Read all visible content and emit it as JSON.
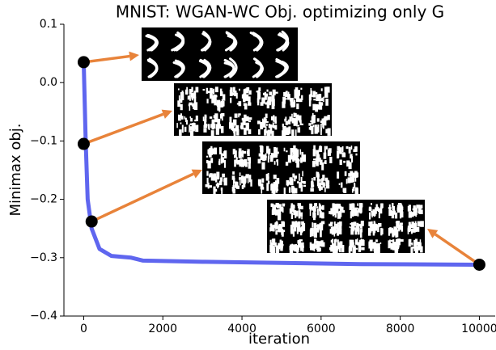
{
  "chart_data": {
    "type": "line",
    "title": "MNIST: WGAN-WC Obj. optimizing only G",
    "x_label": "iteration",
    "y_label": "Minimax obj.",
    "x": [
      0,
      50,
      100,
      200,
      400,
      700,
      1200,
      1500,
      3000,
      5000,
      7000,
      10000
    ],
    "series": [
      {
        "color": "#5f66ef",
        "values": [
          0.035,
          -0.1,
          -0.2,
          -0.25,
          -0.285,
          -0.297,
          -0.3,
          -0.305,
          -0.307,
          -0.309,
          -0.311,
          -0.312
        ]
      }
    ],
    "markers": {
      "color": "#000000",
      "x": [
        0,
        0,
        200,
        10000
      ],
      "values": [
        0.035,
        -0.105,
        -0.238,
        -0.312
      ]
    },
    "arrow_color": "#e8833a",
    "xlim": [
      -500,
      10400
    ],
    "ylim": [
      -0.4,
      0.1
    ],
    "xticks": [
      0,
      2000,
      4000,
      6000,
      8000,
      10000
    ],
    "yticks": [
      {
        "value": -0.4,
        "label": "−0.4"
      },
      {
        "value": -0.3,
        "label": "−0.3"
      },
      {
        "value": -0.2,
        "label": "−0.2"
      },
      {
        "value": -0.1,
        "label": "−0.1"
      },
      {
        "value": 0,
        "label": "0.0"
      },
      0.1
    ]
  }
}
